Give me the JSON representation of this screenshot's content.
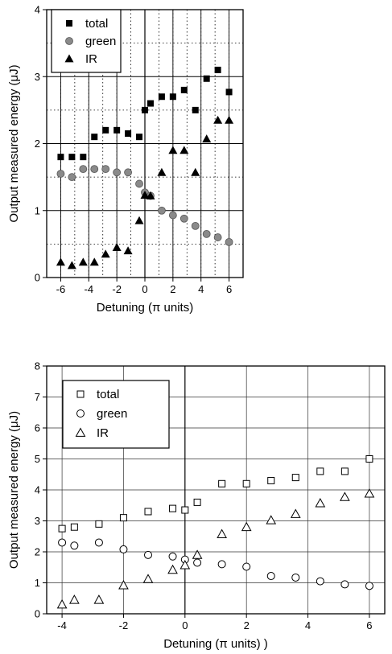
{
  "chart_data": [
    {
      "type": "scatter",
      "xlabel": "Detuning (π units)",
      "ylabel": "Output measured energy (μJ)",
      "xlim": [
        -7,
        7
      ],
      "ylim": [
        0,
        4
      ],
      "xticks": [
        "-6",
        "-4",
        "-2",
        "0",
        "2",
        "4",
        "6"
      ],
      "yticks": [
        "0",
        "1",
        "2",
        "3",
        "4"
      ],
      "grid": "dotted",
      "legend_position": "top-left",
      "series": [
        {
          "name": "total",
          "marker": "filled-square",
          "color": "#000000",
          "points": [
            [
              -6,
              1.8
            ],
            [
              -5.2,
              1.8
            ],
            [
              -4.4,
              1.8
            ],
            [
              -3.6,
              2.1
            ],
            [
              -2.8,
              2.2
            ],
            [
              -2,
              2.2
            ],
            [
              -1.2,
              2.15
            ],
            [
              -0.4,
              2.1
            ],
            [
              0,
              2.5
            ],
            [
              0.4,
              2.6
            ],
            [
              1.2,
              2.7
            ],
            [
              2,
              2.7
            ],
            [
              2.8,
              2.8
            ],
            [
              3.6,
              2.5
            ],
            [
              4.4,
              2.97
            ],
            [
              5.2,
              3.1
            ],
            [
              6,
              2.77
            ]
          ]
        },
        {
          "name": "green",
          "marker": "filled-circle",
          "color": "#8a8a8a",
          "points": [
            [
              -6,
              1.55
            ],
            [
              -5.2,
              1.5
            ],
            [
              -4.4,
              1.62
            ],
            [
              -3.6,
              1.62
            ],
            [
              -2.8,
              1.62
            ],
            [
              -2,
              1.57
            ],
            [
              -1.2,
              1.57
            ],
            [
              -0.4,
              1.4
            ],
            [
              0,
              1.27
            ],
            [
              0.4,
              1.22
            ],
            [
              1.2,
              1.0
            ],
            [
              2,
              0.93
            ],
            [
              2.8,
              0.88
            ],
            [
              3.6,
              0.77
            ],
            [
              4.4,
              0.65
            ],
            [
              5.2,
              0.6
            ],
            [
              6,
              0.53
            ]
          ]
        },
        {
          "name": "IR",
          "marker": "filled-triangle",
          "color": "#000000",
          "points": [
            [
              -6,
              0.23
            ],
            [
              -5.2,
              0.18
            ],
            [
              -4.4,
              0.23
            ],
            [
              -3.6,
              0.23
            ],
            [
              -2.8,
              0.35
            ],
            [
              -2,
              0.45
            ],
            [
              -1.2,
              0.4
            ],
            [
              -0.4,
              0.85
            ],
            [
              0,
              1.23
            ],
            [
              0.4,
              1.22
            ],
            [
              1.2,
              1.57
            ],
            [
              2,
              1.9
            ],
            [
              2.8,
              1.9
            ],
            [
              3.6,
              1.57
            ],
            [
              4.4,
              2.07
            ],
            [
              5.2,
              2.35
            ],
            [
              6,
              2.35
            ]
          ]
        }
      ]
    },
    {
      "type": "scatter",
      "xlabel": "Detuning (π units) )",
      "ylabel": "Output measured energy   (μJ)",
      "xlim": [
        -4.5,
        6.5
      ],
      "ylim": [
        0,
        8
      ],
      "xticks": [
        "-4",
        "-2",
        "0",
        "2",
        "4",
        "6"
      ],
      "yticks": [
        "0",
        "1",
        "2",
        "3",
        "4",
        "5",
        "6",
        "7",
        "8"
      ],
      "grid": "solid",
      "legend_position": "top-left",
      "series": [
        {
          "name": "total",
          "marker": "open-square",
          "color": "#000000",
          "points": [
            [
              -4,
              2.75
            ],
            [
              -3.6,
              2.8
            ],
            [
              -2.8,
              2.9
            ],
            [
              -2,
              3.1
            ],
            [
              -1.2,
              3.3
            ],
            [
              -0.4,
              3.4
            ],
            [
              0,
              3.35
            ],
            [
              0.4,
              3.6
            ],
            [
              1.2,
              4.2
            ],
            [
              2,
              4.2
            ],
            [
              2.8,
              4.3
            ],
            [
              3.6,
              4.4
            ],
            [
              4.4,
              4.6
            ],
            [
              5.2,
              4.6
            ],
            [
              6,
              5.0
            ]
          ]
        },
        {
          "name": "green",
          "marker": "open-circle",
          "color": "#000000",
          "points": [
            [
              -4,
              2.3
            ],
            [
              -3.6,
              2.2
            ],
            [
              -2.8,
              2.3
            ],
            [
              -2,
              2.08
            ],
            [
              -1.2,
              1.9
            ],
            [
              -0.4,
              1.85
            ],
            [
              0,
              1.75
            ],
            [
              0.4,
              1.65
            ],
            [
              1.2,
              1.6
            ],
            [
              2,
              1.52
            ],
            [
              2.8,
              1.22
            ],
            [
              3.6,
              1.17
            ],
            [
              4.4,
              1.05
            ],
            [
              5.2,
              0.95
            ],
            [
              6,
              0.9
            ]
          ]
        },
        {
          "name": "IR",
          "marker": "open-triangle",
          "color": "#000000",
          "points": [
            [
              -4,
              0.3
            ],
            [
              -3.6,
              0.45
            ],
            [
              -2.8,
              0.45
            ],
            [
              -2,
              0.92
            ],
            [
              -1.2,
              1.12
            ],
            [
              -0.4,
              1.42
            ],
            [
              0,
              1.57
            ],
            [
              0.4,
              1.9
            ],
            [
              1.2,
              2.57
            ],
            [
              2,
              2.8
            ],
            [
              2.8,
              3.02
            ],
            [
              3.6,
              3.22
            ],
            [
              4.4,
              3.57
            ],
            [
              5.2,
              3.77
            ],
            [
              6,
              3.88
            ]
          ]
        }
      ]
    }
  ]
}
